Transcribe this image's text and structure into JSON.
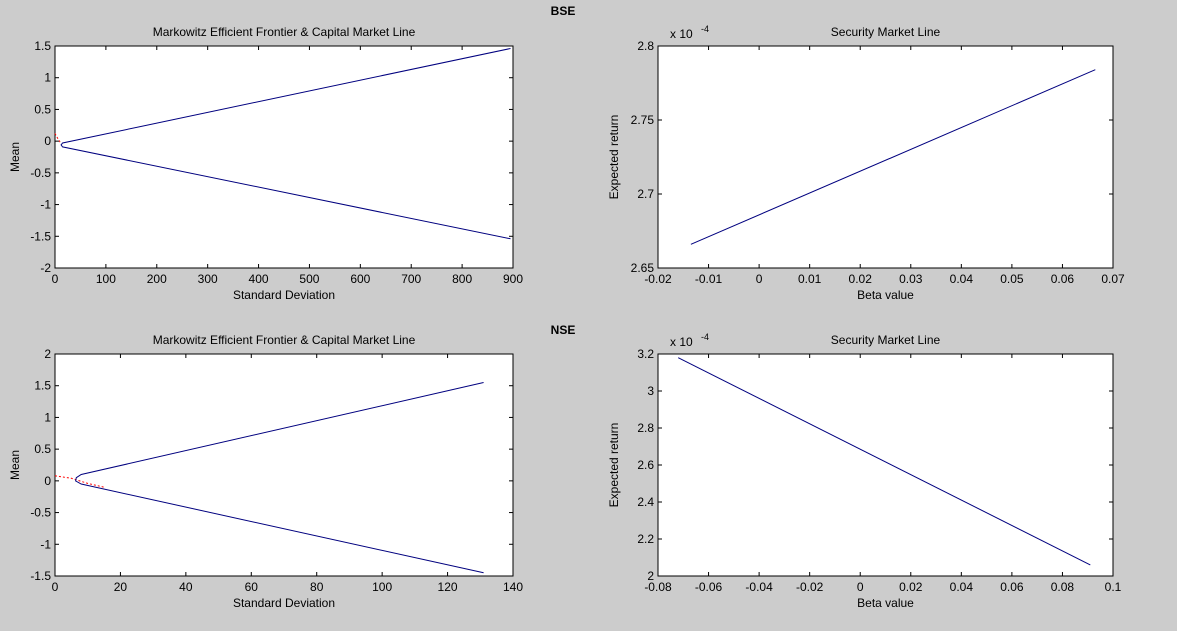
{
  "figure": {
    "bse_label": "BSE",
    "nse_label": "NSE"
  },
  "chart_data": [
    {
      "id": "bse-frontier",
      "type": "line",
      "title": "Markowitz Efficient Frontier & Capital Market Line",
      "xlabel": "Standard Deviation",
      "ylabel": "Mean",
      "xlim": [
        0,
        900
      ],
      "ylim": [
        -2,
        1.5
      ],
      "xticks": [
        0,
        100,
        200,
        300,
        400,
        500,
        600,
        700,
        800,
        900
      ],
      "yticks": [
        -2,
        -1.5,
        -1,
        -0.5,
        0,
        0.5,
        1,
        1.5
      ],
      "xtick_labels": [
        "0",
        "100",
        "200",
        "300",
        "400",
        "500",
        "600",
        "700",
        "800",
        "900"
      ],
      "ytick_labels": [
        "-2",
        "-1.5",
        "-1",
        "-0.5",
        "0",
        "0.5",
        "1",
        "1.5"
      ],
      "grid": false,
      "series": [
        {
          "color": "#ff0000",
          "style": "dashed",
          "x": [
            0,
            5,
            12
          ],
          "y": [
            0.12,
            0.05,
            -0.04
          ]
        },
        {
          "color": "#00007f",
          "style": "solid",
          "x": [
            895,
            15,
            12,
            15,
            895
          ],
          "y": [
            1.46,
            -0.03,
            -0.06,
            -0.09,
            -1.54
          ]
        }
      ]
    },
    {
      "id": "bse-sml",
      "type": "line",
      "title": "Security Market Line",
      "xlabel": "Beta value",
      "ylabel": "Expected return",
      "multiplier": "x 10",
      "multiplier_exp": "-4",
      "xlim": [
        -0.02,
        0.07
      ],
      "ylim": [
        2.65,
        2.8
      ],
      "xticks": [
        -0.02,
        -0.01,
        0,
        0.01,
        0.02,
        0.03,
        0.04,
        0.05,
        0.06,
        0.07
      ],
      "yticks": [
        2.65,
        2.7,
        2.75,
        2.8
      ],
      "xtick_labels": [
        "-0.02",
        "-0.01",
        "0",
        "0.01",
        "0.02",
        "0.03",
        "0.04",
        "0.05",
        "0.06",
        "0.07"
      ],
      "ytick_labels": [
        "2.65",
        "2.7",
        "2.75",
        "2.8"
      ],
      "grid": false,
      "series": [
        {
          "color": "#00007f",
          "style": "solid",
          "x": [
            -0.0135,
            0.0665
          ],
          "y": [
            2.666,
            2.784
          ]
        }
      ]
    },
    {
      "id": "nse-frontier",
      "type": "line",
      "title": "Markowitz Efficient Frontier & Capital Market Line",
      "xlabel": "Standard Deviation",
      "ylabel": "Mean",
      "xlim": [
        0,
        140
      ],
      "ylim": [
        -1.5,
        2
      ],
      "xticks": [
        0,
        20,
        40,
        60,
        80,
        100,
        120,
        140
      ],
      "yticks": [
        -1.5,
        -1,
        -0.5,
        0,
        0.5,
        1,
        1.5,
        2
      ],
      "xtick_labels": [
        "0",
        "20",
        "40",
        "60",
        "80",
        "100",
        "120",
        "140"
      ],
      "ytick_labels": [
        "-1.5",
        "-1",
        "-0.5",
        "0",
        "0.5",
        "1",
        "1.5",
        "2"
      ],
      "grid": false,
      "series": [
        {
          "color": "#ff0000",
          "style": "dashed",
          "x": [
            0,
            5,
            10,
            15
          ],
          "y": [
            0.08,
            0.04,
            -0.04,
            -0.1
          ]
        },
        {
          "color": "#00007f",
          "style": "solid",
          "x": [
            131,
            8,
            6.5,
            6.3,
            8,
            131
          ],
          "y": [
            1.55,
            0.1,
            0.05,
            0.0,
            -0.05,
            -1.45
          ]
        }
      ]
    },
    {
      "id": "nse-sml",
      "type": "line",
      "title": "Security Market Line",
      "xlabel": "Beta value",
      "ylabel": "Expected return",
      "multiplier": "x 10",
      "multiplier_exp": "-4",
      "xlim": [
        -0.08,
        0.1
      ],
      "ylim": [
        2,
        3.2
      ],
      "xticks": [
        -0.08,
        -0.06,
        -0.04,
        -0.02,
        0,
        0.02,
        0.04,
        0.06,
        0.08,
        0.1
      ],
      "yticks": [
        2,
        2.2,
        2.4,
        2.6,
        2.8,
        3,
        3.2
      ],
      "xtick_labels": [
        "-0.08",
        "-0.06",
        "-0.04",
        "-0.02",
        "0",
        "0.02",
        "0.04",
        "0.06",
        "0.08",
        "0.1"
      ],
      "ytick_labels": [
        "2",
        "2.2",
        "2.4",
        "2.6",
        "2.8",
        "3",
        "3.2"
      ],
      "grid": false,
      "series": [
        {
          "color": "#00007f",
          "style": "solid",
          "x": [
            -0.072,
            0.091
          ],
          "y": [
            3.18,
            2.06
          ]
        }
      ]
    }
  ]
}
